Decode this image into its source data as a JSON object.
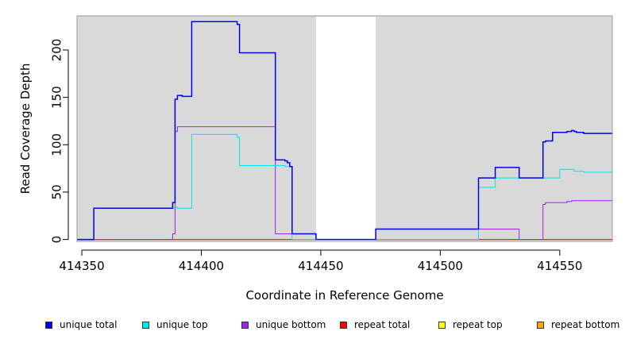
{
  "chart_data": {
    "type": "line",
    "title": "",
    "xlabel": "Coordinate in Reference Genome",
    "ylabel": "Read Coverage Depth",
    "xlim": [
      414348,
      414572
    ],
    "ylim": [
      -2,
      236
    ],
    "x_ticks": [
      414350,
      414400,
      414450,
      414500,
      414550
    ],
    "y_ticks": [
      0,
      50,
      100,
      150,
      200
    ],
    "grid": false,
    "background": "#d9d9d9",
    "gap_region": [
      414448,
      414473
    ],
    "series": [
      {
        "name": "unique total",
        "color": "#0000ee",
        "points": [
          [
            414348,
            0
          ],
          [
            414355,
            0
          ],
          [
            414355,
            33
          ],
          [
            414388,
            33
          ],
          [
            414388,
            39
          ],
          [
            414389,
            39
          ],
          [
            414389,
            148
          ],
          [
            414390,
            148
          ],
          [
            414390,
            152
          ],
          [
            414392,
            152
          ],
          [
            414392,
            151
          ],
          [
            414396,
            151
          ],
          [
            414396,
            230
          ],
          [
            414415,
            230
          ],
          [
            414415,
            227
          ],
          [
            414416,
            227
          ],
          [
            414416,
            197
          ],
          [
            414431,
            197
          ],
          [
            414431,
            84
          ],
          [
            414435,
            84
          ],
          [
            414435,
            83
          ],
          [
            414436,
            83
          ],
          [
            414436,
            81
          ],
          [
            414437,
            81
          ],
          [
            414437,
            77
          ],
          [
            414438,
            77
          ],
          [
            414438,
            6
          ],
          [
            414448,
            6
          ],
          [
            414448,
            0
          ],
          [
            414473,
            0
          ],
          [
            414473,
            11
          ],
          [
            414516,
            11
          ],
          [
            414516,
            65
          ],
          [
            414523,
            65
          ],
          [
            414523,
            76
          ],
          [
            414533,
            76
          ],
          [
            414533,
            65
          ],
          [
            414543,
            65
          ],
          [
            414543,
            103
          ],
          [
            414544,
            103
          ],
          [
            414544,
            104
          ],
          [
            414547,
            104
          ],
          [
            414547,
            113
          ],
          [
            414553,
            113
          ],
          [
            414553,
            114
          ],
          [
            414555,
            114
          ],
          [
            414555,
            115
          ],
          [
            414556,
            115
          ],
          [
            414556,
            114
          ],
          [
            414557,
            114
          ],
          [
            414557,
            113
          ],
          [
            414560,
            113
          ],
          [
            414560,
            112
          ],
          [
            414572,
            112
          ]
        ]
      },
      {
        "name": "unique top",
        "color": "#00e5e5",
        "points": [
          [
            414348,
            0
          ],
          [
            414355,
            0
          ],
          [
            414355,
            33
          ],
          [
            414388,
            33
          ],
          [
            414388,
            34
          ],
          [
            414390,
            34
          ],
          [
            414390,
            33
          ],
          [
            414396,
            33
          ],
          [
            414396,
            111
          ],
          [
            414415,
            111
          ],
          [
            414415,
            108
          ],
          [
            414416,
            108
          ],
          [
            414416,
            78
          ],
          [
            414435,
            78
          ],
          [
            414435,
            77
          ],
          [
            414438,
            77
          ],
          [
            414438,
            0
          ],
          [
            414516,
            0
          ],
          [
            414516,
            55
          ],
          [
            414523,
            55
          ],
          [
            414523,
            65
          ],
          [
            414550,
            65
          ],
          [
            414550,
            74
          ],
          [
            414556,
            74
          ],
          [
            414556,
            72
          ],
          [
            414560,
            72
          ],
          [
            414560,
            71
          ],
          [
            414572,
            71
          ]
        ]
      },
      {
        "name": "unique bottom",
        "color": "#a020f0",
        "points": [
          [
            414348,
            0
          ],
          [
            414388,
            0
          ],
          [
            414388,
            6
          ],
          [
            414389,
            6
          ],
          [
            414389,
            114
          ],
          [
            414390,
            114
          ],
          [
            414390,
            119
          ],
          [
            414431,
            119
          ],
          [
            414431,
            6
          ],
          [
            414448,
            6
          ],
          [
            414448,
            0
          ],
          [
            414516,
            0
          ],
          [
            414516,
            11
          ],
          [
            414533,
            11
          ],
          [
            414533,
            0
          ],
          [
            414543,
            0
          ],
          [
            414543,
            37
          ],
          [
            414544,
            37
          ],
          [
            414544,
            39
          ],
          [
            414553,
            39
          ],
          [
            414553,
            40
          ],
          [
            414555,
            40
          ],
          [
            414555,
            41
          ],
          [
            414572,
            41
          ]
        ]
      },
      {
        "name": "repeat total",
        "color": "#ff0000",
        "points": [
          [
            414348,
            0
          ],
          [
            414572,
            0
          ]
        ]
      },
      {
        "name": "repeat top",
        "color": "#ffff00",
        "points": [
          [
            414348,
            0
          ],
          [
            414572,
            0
          ]
        ]
      },
      {
        "name": "repeat bottom",
        "color": "#ffa500",
        "points": [
          [
            414348,
            0
          ],
          [
            414572,
            0
          ]
        ]
      }
    ]
  }
}
